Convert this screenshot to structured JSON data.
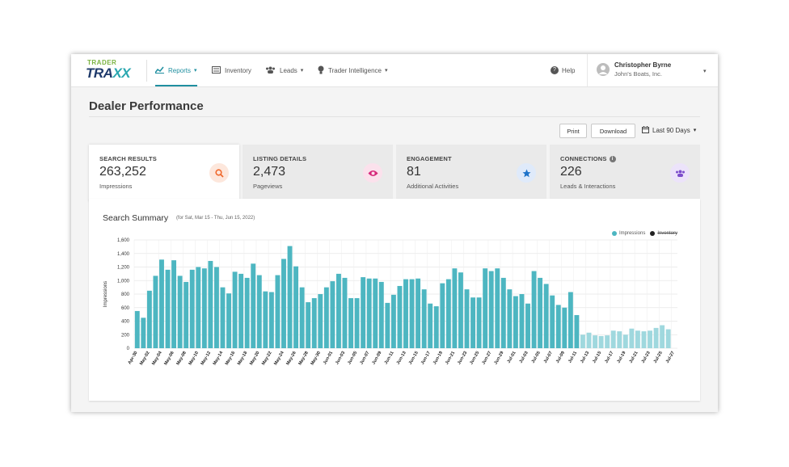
{
  "app": {
    "logo_top": "TRADER",
    "logo_main": "TRA",
    "logo_x": "X",
    "brand_color": "#1f8fa0"
  },
  "nav": {
    "reports": "Reports",
    "inventory": "Inventory",
    "leads": "Leads",
    "intelligence": "Trader Intelligence",
    "help": "Help"
  },
  "user": {
    "name": "Christopher Byrne",
    "org": "John's Boats, Inc."
  },
  "page": {
    "title": "Dealer Performance",
    "print": "Print",
    "download": "Download",
    "range": "Last 90 Days"
  },
  "kpis": [
    {
      "label": "SEARCH RESULTS",
      "value": "263,252",
      "sub": "Impressions",
      "icon": "search-icon",
      "color": "#f06a2e",
      "bg": "#fde7dc"
    },
    {
      "label": "LISTING DETAILS",
      "value": "2,473",
      "sub": "Pageviews",
      "icon": "eye-icon",
      "color": "#d6297b",
      "bg": "#fbe1ec"
    },
    {
      "label": "ENGAGEMENT",
      "value": "81",
      "sub": "Additional Activities",
      "icon": "star-icon",
      "color": "#1e73c9",
      "bg": "#dfeafa"
    },
    {
      "label": "CONNECTIONS",
      "value": "226",
      "sub": "Leads & Interactions",
      "icon": "people-icon",
      "color": "#7c4dcc",
      "bg": "#ece3fa"
    }
  ],
  "summary": {
    "title": "Search Summary",
    "subtitle": "(for Sat, Mar 15 - Thu, Jun 15, 2022)",
    "legend_impressions": "Impressions",
    "legend_inventory": "Inventory"
  },
  "chart_data": {
    "type": "bar",
    "ylabel": "Impressions",
    "ylim": [
      0,
      1600
    ],
    "yticks": [
      "1,600",
      "1,400",
      "1,200",
      "1,000",
      "800",
      "600",
      "400",
      "200",
      "0"
    ],
    "bar_color": "#4db6c1",
    "grid": true,
    "legend": "top-right",
    "categories": [
      "Apr-30",
      "May-01",
      "May-02",
      "May-03",
      "May-04",
      "May-05",
      "May-06",
      "May-07",
      "May-08",
      "May-09",
      "May-10",
      "May-11",
      "May-12",
      "May-13",
      "May-14",
      "May-15",
      "May-16",
      "May-17",
      "May-18",
      "May-19",
      "May-20",
      "May-21",
      "May-22",
      "May-23",
      "May-24",
      "May-25",
      "May-26",
      "May-27",
      "May-28",
      "May-29",
      "May-30",
      "May-31",
      "Jun-01",
      "Jun-02",
      "Jun-03",
      "Jun-04",
      "Jun-05",
      "Jun-06",
      "Jun-07",
      "Jun-08",
      "Jun-09",
      "Jun-10",
      "Jun-11",
      "Jun-12",
      "Jun-13",
      "Jun-14",
      "Jun-15",
      "Jun-16",
      "Jun-17",
      "Jun-18",
      "Jun-19",
      "Jun-20",
      "Jun-21",
      "Jun-22",
      "Jun-23",
      "Jun-24",
      "Jun-25",
      "Jun-26",
      "Jun-27",
      "Jun-28",
      "Jun-29",
      "Jun-30",
      "Jul-01",
      "Jul-02",
      "Jul-03",
      "Jul-04",
      "Jul-05",
      "Jul-06",
      "Jul-07",
      "Jul-08",
      "Jul-09",
      "Jul-10",
      "Jul-11",
      "Jul-12",
      "Jul-13",
      "Jul-14",
      "Jul-15",
      "Jul-16",
      "Jul-17",
      "Jul-18",
      "Jul-19",
      "Jul-20",
      "Jul-21",
      "Jul-22",
      "Jul-23",
      "Jul-24",
      "Jul-25",
      "Jul-26",
      "Jul-27"
    ],
    "xticks": [
      "Apr-30",
      "May-02",
      "May-04",
      "May-06",
      "May-08",
      "May-10",
      "May-12",
      "May-14",
      "May-16",
      "May-18",
      "May-20",
      "May-22",
      "May-24",
      "May-26",
      "May-28",
      "May-30",
      "Jun-01",
      "Jun-03",
      "Jun-05",
      "Jun-07",
      "Jun-09",
      "Jun-11",
      "Jun-13",
      "Jun-15",
      "Jun-17",
      "Jun-19",
      "Jun-21",
      "Jun-23",
      "Jun-25",
      "Jun-27",
      "Jun-29",
      "Jul-01",
      "Jul-03",
      "Jul-05",
      "Jul-07",
      "Jul-09",
      "Jul-11",
      "Jul-13",
      "Jul-15",
      "Jul-17",
      "Jul-19",
      "Jul-21",
      "Jul-23",
      "Jul-25",
      "Jul-27"
    ],
    "series": [
      {
        "name": "Impressions",
        "values": [
          550,
          450,
          850,
          1070,
          1310,
          1160,
          1300,
          1070,
          980,
          1160,
          1200,
          1180,
          1290,
          1200,
          900,
          810,
          1130,
          1100,
          1040,
          1250,
          1080,
          840,
          830,
          1080,
          1320,
          1510,
          1210,
          900,
          680,
          740,
          800,
          900,
          990,
          1100,
          1040,
          740,
          740,
          1050,
          1030,
          1030,
          980,
          670,
          790,
          920,
          1020,
          1020,
          1030,
          870,
          660,
          620,
          960,
          1020,
          1180,
          1120,
          870,
          750,
          750,
          1180,
          1140,
          1180,
          1040,
          870,
          770,
          800,
          660,
          1140,
          1040,
          950,
          780,
          640,
          600,
          830,
          490,
          200,
          230,
          190,
          180,
          190,
          260,
          250,
          200,
          290,
          260,
          250,
          260,
          300,
          340,
          280,
          0
        ]
      }
    ]
  }
}
